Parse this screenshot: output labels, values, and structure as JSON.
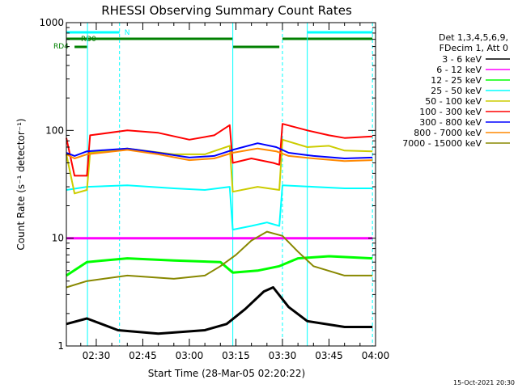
{
  "chart_data": {
    "type": "line",
    "title": "RHESSI Observing Summary Count Rates",
    "xlabel": "Start Time (28-Mar-05 02:20:22)",
    "ylabel": "Count Rate (s⁻¹ detector⁻¹)",
    "y_scale": "log",
    "ylim": [
      1,
      1000
    ],
    "y_ticks": [
      {
        "value": 1,
        "label": "1"
      },
      {
        "value": 10,
        "label": "10"
      },
      {
        "value": 100,
        "label": "100"
      },
      {
        "value": 1000,
        "label": "1000"
      }
    ],
    "x_ticks": [
      "02:30",
      "02:45",
      "03:00",
      "03:15",
      "03:30",
      "03:45",
      "04:00"
    ],
    "xlim": [
      "02:20:22",
      "04:00"
    ],
    "grid": false,
    "legend": {
      "placement": "top-right",
      "header": [
        "Det 1,3,4,5,6,9,",
        "FDecim 1, Att 0"
      ]
    },
    "date_stamp": "15-Oct-2021 20:30",
    "status_bars": [
      {
        "label": "N",
        "color": "#00ffff",
        "segments": [
          [
            "02:20:22",
            "02:37:30"
          ],
          [
            "03:38",
            "03:59"
          ]
        ]
      },
      {
        "label": "RD0",
        "color": "#008000",
        "segments": [
          [
            "02:20:22",
            "03:14"
          ],
          [
            "03:30",
            "03:59"
          ]
        ]
      },
      {
        "label": "RD4",
        "color": "#008000",
        "segments": [
          [
            "02:23",
            "02:27"
          ],
          [
            "03:14",
            "03:29"
          ]
        ]
      }
    ],
    "markers": [
      {
        "time": "02:27:10",
        "style": "solid",
        "color": "#00ffff"
      },
      {
        "time": "02:37:30",
        "style": "dashed",
        "color": "#00ffff"
      },
      {
        "time": "03:14",
        "style": "solid",
        "color": "#00ffff"
      },
      {
        "time": "03:30",
        "style": "dashed",
        "color": "#00ffff"
      },
      {
        "time": "03:38",
        "style": "solid",
        "color": "#00ffff"
      },
      {
        "time": "03:59",
        "style": "dashed",
        "color": "#00ffff"
      }
    ],
    "series": [
      {
        "name": "3 - 6 keV",
        "color": "#000000",
        "points": [
          [
            "02:20:22",
            1.6
          ],
          [
            "02:27",
            1.8
          ],
          [
            "02:37",
            1.4
          ],
          [
            "02:50",
            1.3
          ],
          [
            "03:05",
            1.4
          ],
          [
            "03:12",
            1.6
          ],
          [
            "03:18",
            2.2
          ],
          [
            "03:24",
            3.2
          ],
          [
            "03:27",
            3.5
          ],
          [
            "03:32",
            2.3
          ],
          [
            "03:38",
            1.7
          ],
          [
            "03:50",
            1.5
          ],
          [
            "03:59",
            1.5
          ]
        ]
      },
      {
        "name": "6 - 12 keV",
        "color": "#ff00ff",
        "points": [
          [
            "02:20:22",
            10
          ],
          [
            "02:30",
            10
          ],
          [
            "02:45",
            10
          ],
          [
            "03:00",
            10
          ],
          [
            "03:15",
            10
          ],
          [
            "03:30",
            10
          ],
          [
            "03:45",
            10
          ],
          [
            "03:59",
            10
          ]
        ]
      },
      {
        "name": "12 - 25 keV",
        "color": "#00ff00",
        "points": [
          [
            "02:20:22",
            4.5
          ],
          [
            "02:27",
            6
          ],
          [
            "02:40",
            6.5
          ],
          [
            "02:55",
            6.2
          ],
          [
            "03:10",
            6
          ],
          [
            "03:14",
            4.8
          ],
          [
            "03:22",
            5
          ],
          [
            "03:29",
            5.5
          ],
          [
            "03:35",
            6.5
          ],
          [
            "03:45",
            6.8
          ],
          [
            "03:59",
            6.5
          ]
        ]
      },
      {
        "name": "25 - 50 keV",
        "color": "#00ffff",
        "points": [
          [
            "02:20:22",
            28
          ],
          [
            "02:27",
            30
          ],
          [
            "02:40",
            31
          ],
          [
            "02:55",
            29
          ],
          [
            "03:05",
            28
          ],
          [
            "03:13",
            30
          ],
          [
            "03:14",
            12
          ],
          [
            "03:20",
            13
          ],
          [
            "03:25",
            14
          ],
          [
            "03:29",
            13
          ],
          [
            "03:30",
            31
          ],
          [
            "03:40",
            30
          ],
          [
            "03:50",
            29
          ],
          [
            "03:59",
            29
          ]
        ]
      },
      {
        "name": "50 - 100 keV",
        "color": "#cccc00",
        "points": [
          [
            "02:20:22",
            60
          ],
          [
            "02:23",
            26
          ],
          [
            "02:27",
            28
          ],
          [
            "02:28",
            62
          ],
          [
            "02:40",
            68
          ],
          [
            "02:55",
            60
          ],
          [
            "03:05",
            60
          ],
          [
            "03:13",
            72
          ],
          [
            "03:14",
            27
          ],
          [
            "03:22",
            30
          ],
          [
            "03:29",
            28
          ],
          [
            "03:30",
            82
          ],
          [
            "03:38",
            70
          ],
          [
            "03:45",
            72
          ],
          [
            "03:50",
            65
          ],
          [
            "03:59",
            64
          ]
        ]
      },
      {
        "name": "100 - 300 keV",
        "color": "#ff0000",
        "points": [
          [
            "02:20:22",
            85
          ],
          [
            "02:23",
            38
          ],
          [
            "02:27",
            38
          ],
          [
            "02:28",
            90
          ],
          [
            "02:40",
            100
          ],
          [
            "02:50",
            95
          ],
          [
            "03:00",
            82
          ],
          [
            "03:08",
            90
          ],
          [
            "03:13",
            112
          ],
          [
            "03:14",
            50
          ],
          [
            "03:20",
            55
          ],
          [
            "03:27",
            50
          ],
          [
            "03:29",
            48
          ],
          [
            "03:30",
            115
          ],
          [
            "03:38",
            100
          ],
          [
            "03:45",
            90
          ],
          [
            "03:50",
            85
          ],
          [
            "03:59",
            88
          ]
        ]
      },
      {
        "name": "300 - 800 keV",
        "color": "#0000ff",
        "points": [
          [
            "02:20:22",
            62
          ],
          [
            "02:23",
            58
          ],
          [
            "02:27",
            64
          ],
          [
            "02:40",
            68
          ],
          [
            "02:50",
            62
          ],
          [
            "03:00",
            56
          ],
          [
            "03:08",
            58
          ],
          [
            "03:14",
            66
          ],
          [
            "03:22",
            76
          ],
          [
            "03:28",
            70
          ],
          [
            "03:32",
            62
          ],
          [
            "03:40",
            58
          ],
          [
            "03:50",
            55
          ],
          [
            "03:59",
            56
          ]
        ]
      },
      {
        "name": "800 - 7000 keV",
        "color": "#ff8800",
        "points": [
          [
            "02:20:22",
            60
          ],
          [
            "02:23",
            55
          ],
          [
            "02:27",
            60
          ],
          [
            "02:40",
            66
          ],
          [
            "02:50",
            60
          ],
          [
            "03:00",
            53
          ],
          [
            "03:08",
            55
          ],
          [
            "03:14",
            62
          ],
          [
            "03:22",
            68
          ],
          [
            "03:28",
            64
          ],
          [
            "03:32",
            58
          ],
          [
            "03:40",
            55
          ],
          [
            "03:50",
            52
          ],
          [
            "03:59",
            53
          ]
        ]
      },
      {
        "name": "7000 - 15000 keV",
        "color": "#888800",
        "points": [
          [
            "02:20:22",
            3.5
          ],
          [
            "02:27",
            4
          ],
          [
            "02:40",
            4.5
          ],
          [
            "02:55",
            4.2
          ],
          [
            "03:05",
            4.5
          ],
          [
            "03:10",
            5.5
          ],
          [
            "03:15",
            7
          ],
          [
            "03:20",
            9.5
          ],
          [
            "03:25",
            11.5
          ],
          [
            "03:30",
            10.5
          ],
          [
            "03:35",
            7.5
          ],
          [
            "03:40",
            5.5
          ],
          [
            "03:50",
            4.5
          ],
          [
            "03:59",
            4.5
          ]
        ]
      }
    ]
  }
}
